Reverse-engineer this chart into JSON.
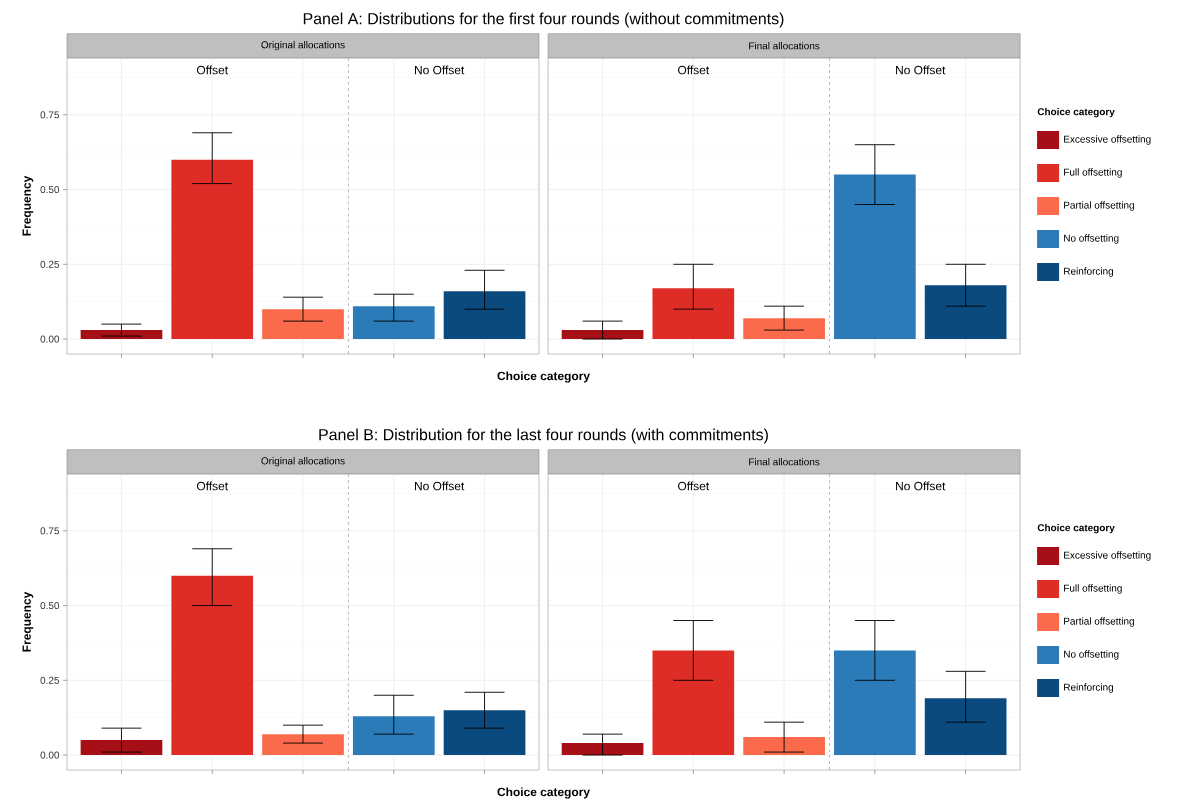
{
  "chart_data": [
    {
      "type": "bar",
      "title": "Panel A: Distributions for the first four rounds (without commitments)",
      "xlabel": "Choice category",
      "ylabel": "Frequency",
      "categories": [
        null,
        null,
        null,
        null,
        null,
        null,
        null,
        null,
        null,
        null
      ],
      "ylim": [
        -0.05,
        0.94
      ],
      "yticks": [
        {
          "value": 0,
          "label": "0.00"
        },
        {
          "value": 0.25,
          "label": "0.25"
        },
        {
          "value": 0.5,
          "label": "0.50"
        },
        {
          "value": 0.75,
          "label": "0.75"
        }
      ],
      "grid": true,
      "tick_labels": "y",
      "legend": "right",
      "legend_title": "Choice category",
      "annotations": [
        "Original allocations",
        "Final allocations",
        "Offset",
        "No Offset",
        "Offset",
        "No Offset"
      ],
      "series": [
        {
          "name": "Excessive offsetting",
          "color": "#a50f15",
          "values": [
            0.03,
            null,
            null,
            null,
            null,
            0.03,
            null,
            null,
            null,
            null
          ],
          "errors": [
            [
              0.01,
              0.05
            ],
            null,
            null,
            null,
            null,
            [
              0.0,
              0.06
            ],
            null,
            null,
            null,
            null
          ]
        },
        {
          "name": "Full offsetting",
          "color": "#de2d26",
          "values": [
            null,
            0.6,
            null,
            null,
            null,
            null,
            0.17,
            null,
            null,
            null
          ],
          "errors": [
            null,
            [
              0.52,
              0.69
            ],
            null,
            null,
            null,
            null,
            [
              0.1,
              0.25
            ],
            null,
            null,
            null
          ]
        },
        {
          "name": "Partial offsetting",
          "color": "#fb6a4a",
          "values": [
            null,
            null,
            0.1,
            null,
            null,
            null,
            null,
            0.07,
            null,
            null
          ],
          "errors": [
            null,
            null,
            [
              0.06,
              0.14
            ],
            null,
            null,
            null,
            null,
            [
              0.03,
              0.11
            ],
            null,
            null
          ]
        },
        {
          "name": "No offsetting",
          "color": "#2b7bb9",
          "values": [
            null,
            null,
            null,
            0.11,
            null,
            null,
            null,
            null,
            0.55,
            null
          ],
          "errors": [
            null,
            null,
            null,
            [
              0.06,
              0.15
            ],
            null,
            null,
            null,
            null,
            [
              0.45,
              0.65
            ],
            null
          ]
        },
        {
          "name": "Reinforcing",
          "color": "#0b4a7f",
          "values": [
            null,
            null,
            null,
            null,
            0.16,
            null,
            null,
            null,
            null,
            0.18
          ],
          "errors": [
            null,
            null,
            null,
            null,
            [
              0.1,
              0.23
            ],
            null,
            null,
            null,
            null,
            [
              0.11,
              0.25
            ]
          ]
        }
      ]
    },
    {
      "type": "bar",
      "title": "Panel B: Distribution for the last four rounds (with commitments)",
      "xlabel": "Choice category",
      "ylabel": "Frequency",
      "categories": [
        null,
        null,
        null,
        null,
        null,
        null,
        null,
        null,
        null,
        null
      ],
      "ylim": [
        -0.05,
        0.94
      ],
      "yticks": [
        {
          "value": 0,
          "label": "0.00"
        },
        {
          "value": 0.25,
          "label": "0.25"
        },
        {
          "value": 0.5,
          "label": "0.50"
        },
        {
          "value": 0.75,
          "label": "0.75"
        }
      ],
      "grid": true,
      "tick_labels": "y",
      "legend": "right",
      "legend_title": "Choice category",
      "annotations": [
        "Original allocations",
        "Final allocations",
        "Offset",
        "No Offset",
        "Offset",
        "No Offset"
      ],
      "series": [
        {
          "name": "Excessive offsetting",
          "color": "#a50f15",
          "values": [
            0.05,
            null,
            null,
            null,
            null,
            0.04,
            null,
            null,
            null,
            null
          ],
          "errors": [
            [
              0.01,
              0.09
            ],
            null,
            null,
            null,
            null,
            [
              0.0,
              0.07
            ],
            null,
            null,
            null,
            null
          ]
        },
        {
          "name": "Full offsetting",
          "color": "#de2d26",
          "values": [
            null,
            0.6,
            null,
            null,
            null,
            null,
            0.35,
            null,
            null,
            null
          ],
          "errors": [
            null,
            [
              0.5,
              0.69
            ],
            null,
            null,
            null,
            null,
            [
              0.25,
              0.45
            ],
            null,
            null,
            null
          ]
        },
        {
          "name": "Partial offsetting",
          "color": "#fb6a4a",
          "values": [
            null,
            null,
            0.07,
            null,
            null,
            null,
            null,
            0.06,
            null,
            null
          ],
          "errors": [
            null,
            null,
            [
              0.04,
              0.1
            ],
            null,
            null,
            null,
            null,
            [
              0.01,
              0.11
            ],
            null,
            null
          ]
        },
        {
          "name": "No offsetting",
          "color": "#2b7bb9",
          "values": [
            null,
            null,
            null,
            0.13,
            null,
            null,
            null,
            null,
            0.35,
            null
          ],
          "errors": [
            null,
            null,
            null,
            [
              0.07,
              0.2
            ],
            null,
            null,
            null,
            null,
            [
              0.25,
              0.45
            ],
            null
          ]
        },
        {
          "name": "Reinforcing",
          "color": "#0b4a7f",
          "values": [
            null,
            null,
            null,
            null,
            0.15,
            null,
            null,
            null,
            null,
            0.19
          ],
          "errors": [
            null,
            null,
            null,
            null,
            [
              0.09,
              0.21
            ],
            null,
            null,
            null,
            null,
            [
              0.11,
              0.28
            ]
          ]
        }
      ]
    }
  ]
}
